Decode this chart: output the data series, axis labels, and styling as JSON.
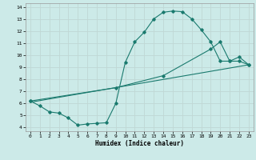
{
  "xlabel": "Humidex (Indice chaleur)",
  "bg_color": "#cceae8",
  "grid_color": "#c0d8d4",
  "line_color": "#1a7a6e",
  "xlim": [
    -0.5,
    23.5
  ],
  "ylim": [
    3.7,
    14.3
  ],
  "xticks": [
    0,
    1,
    2,
    3,
    4,
    5,
    6,
    7,
    8,
    9,
    10,
    11,
    12,
    13,
    14,
    15,
    16,
    17,
    18,
    19,
    20,
    21,
    22,
    23
  ],
  "yticks": [
    4,
    5,
    6,
    7,
    8,
    9,
    10,
    11,
    12,
    13,
    14
  ],
  "line1_x": [
    0,
    1,
    2,
    3,
    4,
    5,
    6,
    7,
    8,
    9,
    10,
    11,
    12,
    13,
    14,
    15,
    16,
    17,
    18,
    19,
    20,
    21,
    22,
    23
  ],
  "line1_y": [
    6.2,
    5.8,
    5.3,
    5.2,
    4.8,
    4.2,
    4.3,
    4.35,
    4.4,
    6.0,
    9.4,
    11.1,
    11.9,
    13.0,
    13.55,
    13.65,
    13.6,
    13.0,
    12.1,
    11.1,
    9.5,
    9.5,
    9.85,
    9.2
  ],
  "line2_x": [
    0,
    9,
    14,
    19,
    20,
    21,
    22,
    23
  ],
  "line2_y": [
    6.2,
    7.3,
    8.3,
    10.5,
    11.1,
    9.5,
    9.5,
    9.2
  ],
  "line3_x": [
    0,
    23
  ],
  "line3_y": [
    6.1,
    9.2
  ]
}
